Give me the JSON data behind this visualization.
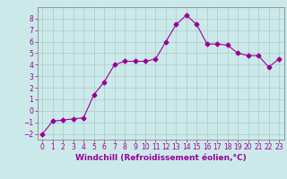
{
  "x": [
    0,
    1,
    2,
    3,
    4,
    5,
    6,
    7,
    8,
    9,
    10,
    11,
    12,
    13,
    14,
    15,
    16,
    17,
    18,
    19,
    20,
    21,
    22,
    23
  ],
  "y": [
    -2.0,
    -0.9,
    -0.8,
    -0.7,
    -0.6,
    1.4,
    2.5,
    4.0,
    4.3,
    4.3,
    4.3,
    4.5,
    6.0,
    7.5,
    8.3,
    7.5,
    5.8,
    5.8,
    5.7,
    5.0,
    4.8,
    4.8,
    3.8,
    4.5
  ],
  "line_color": "#990099",
  "marker": "D",
  "marker_size": 2.5,
  "bg_color": "#cce9e9",
  "grid_color": "#aacccc",
  "xlabel": "Windchill (Refroidissement éolien,°C)",
  "xlabel_color": "#990099",
  "xlabel_fontsize": 6.5,
  "tick_color": "#990099",
  "tick_fontsize": 5.5,
  "ylim": [
    -2.5,
    9.0
  ],
  "xlim": [
    -0.5,
    23.5
  ],
  "yticks": [
    -2,
    -1,
    0,
    1,
    2,
    3,
    4,
    5,
    6,
    7,
    8
  ],
  "xticks": [
    0,
    1,
    2,
    3,
    4,
    5,
    6,
    7,
    8,
    9,
    10,
    11,
    12,
    13,
    14,
    15,
    16,
    17,
    18,
    19,
    20,
    21,
    22,
    23
  ]
}
